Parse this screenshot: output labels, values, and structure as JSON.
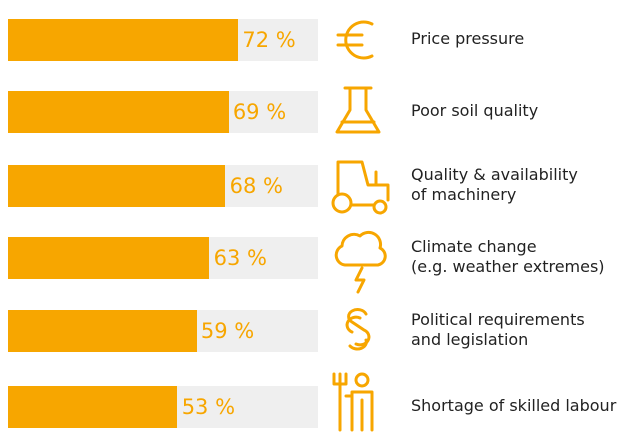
{
  "chart_data": {
    "type": "bar",
    "orientation": "horizontal",
    "categories": [
      "Price pressure",
      "Poor soil quality",
      "Quality & availability\nof machinery",
      "Climate change\n(e.g. weather extremes)",
      "Political requirements\nand legislation",
      "Shortage of skilled labour"
    ],
    "values": [
      72,
      69,
      68,
      63,
      59,
      53
    ],
    "value_labels": [
      "72 %",
      "69 %",
      "68 %",
      "63 %",
      "59 %",
      "53 %"
    ],
    "xlim": [
      0,
      97
    ],
    "color": "#f7a600",
    "track_color": "#efefef"
  }
}
